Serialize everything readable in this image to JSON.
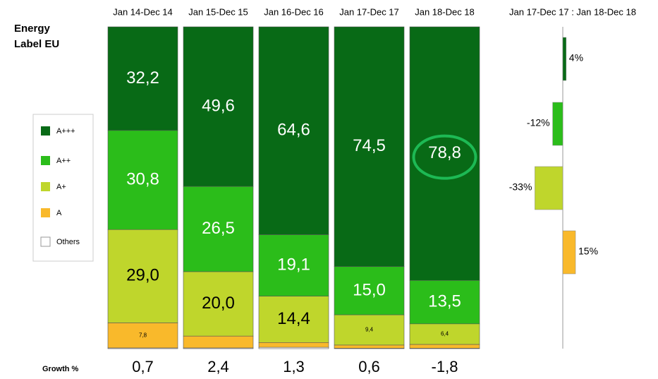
{
  "chart_data": [
    {
      "type": "stacked_bar_100",
      "title": "Energy Label EU",
      "categories": [
        "Jan 14-Dec 14",
        "Jan 15-Dec 15",
        "Jan 16-Dec 16",
        "Jan 17-Dec 17",
        "Jan 18-Dec 18"
      ],
      "ylim": [
        0,
        100
      ],
      "series": [
        {
          "name": "A+++",
          "color": "#086a16",
          "label_color": "#ffffff",
          "values": [
            32.2,
            49.6,
            64.6,
            74.5,
            78.8
          ],
          "value_labels": [
            "32,2",
            "49,6",
            "64,6",
            "74,5",
            "78,8"
          ]
        },
        {
          "name": "A++",
          "color": "#2bbd1a",
          "label_color": "#ffffff",
          "values": [
            30.8,
            26.5,
            19.1,
            15.0,
            13.5
          ],
          "value_labels": [
            "30,8",
            "26,5",
            "19,1",
            "15,0",
            "13,5"
          ]
        },
        {
          "name": "A+",
          "color": "#bfd62c",
          "label_color": "#000000",
          "values": [
            29.0,
            20.0,
            14.4,
            9.4,
            6.4
          ],
          "value_labels": [
            "29,0",
            "20,0",
            "14,4",
            "9,4",
            "6,4"
          ]
        },
        {
          "name": "A",
          "color": "#f9b92b",
          "label_color": "#000000",
          "values": [
            7.8,
            3.7,
            1.5,
            1.0,
            1.2
          ],
          "value_labels": [
            "7,8",
            null,
            null,
            null,
            null
          ]
        },
        {
          "name": "Others",
          "color": "#ffffff",
          "label_color": "#000000",
          "values": [
            0.2,
            0.2,
            0.4,
            0.1,
            0.1
          ],
          "value_labels": [
            null,
            null,
            null,
            null,
            null
          ]
        }
      ],
      "growth_label": "Growth %",
      "growth": [
        0.7,
        2.4,
        1.3,
        0.6,
        -1.8
      ],
      "growth_labels": [
        "0,7",
        "2,4",
        "1,3",
        "0,6",
        "-1,8"
      ]
    },
    {
      "type": "hbar",
      "title": "Jan 17-Dec 17 : Jan 18-Dec 18",
      "xlim": [
        -40,
        40
      ],
      "values": [
        4,
        -12,
        -33,
        15
      ],
      "value_labels": [
        "4%",
        "-12%",
        "-33%",
        "15%"
      ],
      "colors": [
        "#086a16",
        "#2bbd1a",
        "#bfd62c",
        "#f9b92b"
      ]
    }
  ]
}
